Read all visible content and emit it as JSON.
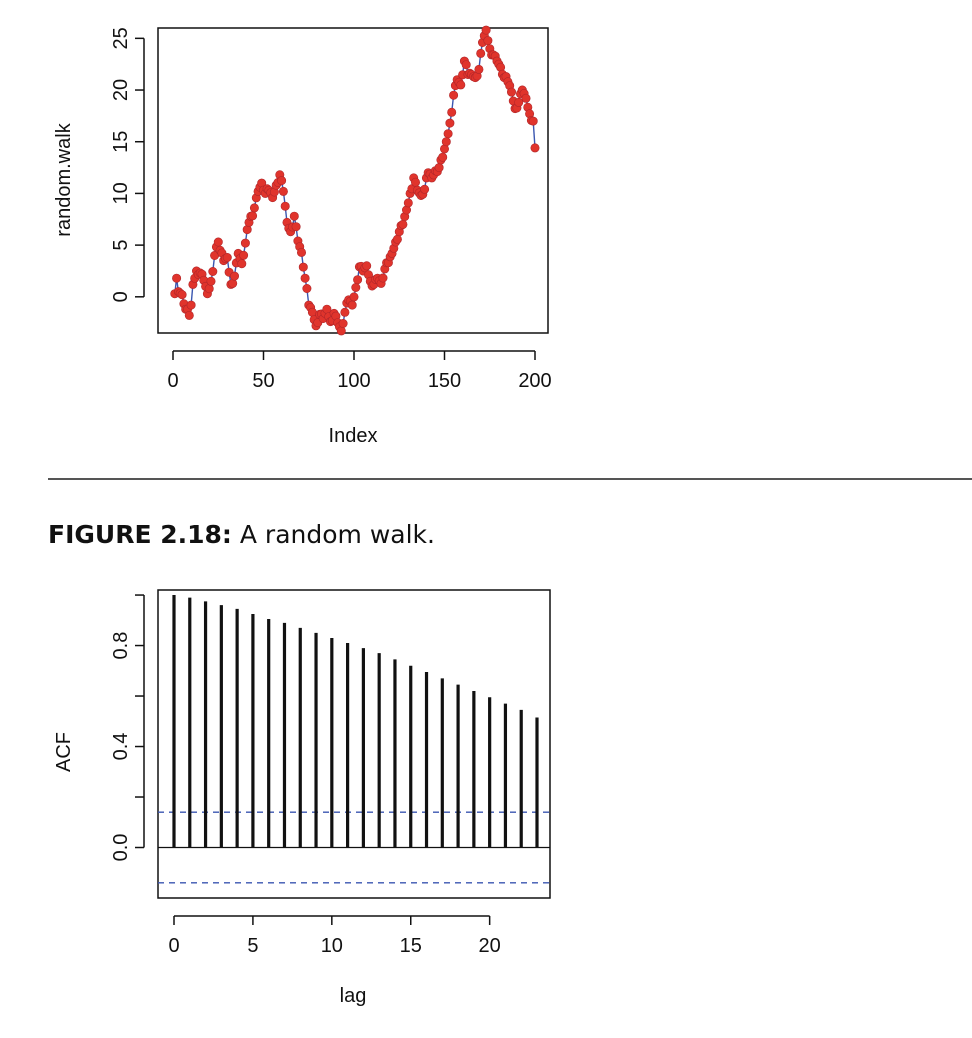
{
  "figure": {
    "caption_label": "FIGURE 2.18:",
    "caption_text": " A random walk."
  },
  "colors": {
    "point": "#e0342c",
    "line": "#3a56b0",
    "ci": "#3a56b0",
    "ink": "#111111"
  },
  "chart_data": [
    {
      "type": "line",
      "xlabel": "Index",
      "ylabel": "random.walk",
      "xlim": [
        0,
        200
      ],
      "ylim": [
        -3.5,
        26
      ],
      "xticks": [
        0,
        50,
        100,
        150,
        200
      ],
      "yticks": [
        0,
        5,
        10,
        15,
        20,
        25
      ],
      "grid": false,
      "series": [
        {
          "points": true,
          "keyframes_x": [
            1,
            2,
            3,
            5,
            7,
            9,
            10,
            11,
            13,
            15,
            17,
            19,
            21,
            23,
            25,
            26,
            28,
            30,
            32,
            34,
            36,
            38,
            40,
            42,
            45,
            47,
            49,
            51,
            53,
            55,
            57,
            59,
            61,
            63,
            65,
            67,
            69,
            71,
            73,
            75,
            77,
            79,
            81,
            83,
            85,
            87,
            89,
            91,
            93,
            95,
            97,
            99,
            101,
            103,
            105,
            107,
            109,
            111,
            113,
            115,
            117,
            119,
            121,
            123,
            125,
            127,
            129,
            131,
            133,
            135,
            137,
            139,
            141,
            143,
            145,
            147,
            149,
            151,
            153,
            155,
            157,
            159,
            161,
            163,
            165,
            167,
            169,
            171,
            173,
            175,
            177,
            179,
            181,
            183,
            185,
            187,
            189,
            191,
            193,
            195,
            197,
            199,
            200
          ],
          "keyframes_y": [
            0.3,
            1.8,
            0.5,
            0.2,
            -1.2,
            -1.8,
            -0.8,
            1.2,
            2.5,
            2.3,
            1.6,
            0.3,
            1.5,
            4.0,
            5.3,
            4.5,
            3.5,
            3.8,
            1.2,
            2.0,
            4.2,
            3.2,
            5.2,
            7.2,
            8.6,
            10.2,
            11.0,
            10.0,
            10.3,
            9.6,
            10.8,
            11.8,
            10.2,
            7.2,
            6.3,
            7.8,
            5.4,
            4.3,
            1.8,
            -0.8,
            -1.5,
            -2.8,
            -1.7,
            -2.1,
            -1.2,
            -2.4,
            -1.6,
            -2.5,
            -3.3,
            -1.5,
            -0.3,
            -0.8,
            0.9,
            2.9,
            2.5,
            3.0,
            1.5,
            1.2,
            1.8,
            1.3,
            2.7,
            3.3,
            4.2,
            5.3,
            6.3,
            7.0,
            8.4,
            10.0,
            11.5,
            10.3,
            9.8,
            10.4,
            12.0,
            11.5,
            12.2,
            12.5,
            13.5,
            15.0,
            16.8,
            19.5,
            21.0,
            20.5,
            22.8,
            21.5,
            21.5,
            21.2,
            22.0,
            24.6,
            25.8,
            24.0,
            23.4,
            22.8,
            22.2,
            21.2,
            20.8,
            19.8,
            18.2,
            18.8,
            20.0,
            19.2,
            17.7,
            17.0,
            14.4
          ]
        }
      ]
    },
    {
      "type": "bar",
      "xlabel": "lag",
      "ylabel": "ACF",
      "xlim": [
        0,
        23
      ],
      "ylim": [
        -0.2,
        1.02
      ],
      "xticks": [
        0,
        5,
        10,
        15,
        20
      ],
      "yticks": [
        0.0,
        0.4,
        0.8
      ],
      "yticks_minor": [
        0.2,
        0.6,
        1.0
      ],
      "grid": false,
      "ci_bounds": [
        0.14,
        -0.14
      ],
      "lags": [
        0,
        1,
        2,
        3,
        4,
        5,
        6,
        7,
        8,
        9,
        10,
        11,
        12,
        13,
        14,
        15,
        16,
        17,
        18,
        19,
        20,
        21,
        22,
        23
      ],
      "values": [
        1.0,
        0.99,
        0.975,
        0.96,
        0.945,
        0.925,
        0.905,
        0.89,
        0.87,
        0.85,
        0.83,
        0.81,
        0.79,
        0.77,
        0.745,
        0.72,
        0.695,
        0.67,
        0.645,
        0.62,
        0.595,
        0.57,
        0.545,
        0.515
      ]
    }
  ]
}
